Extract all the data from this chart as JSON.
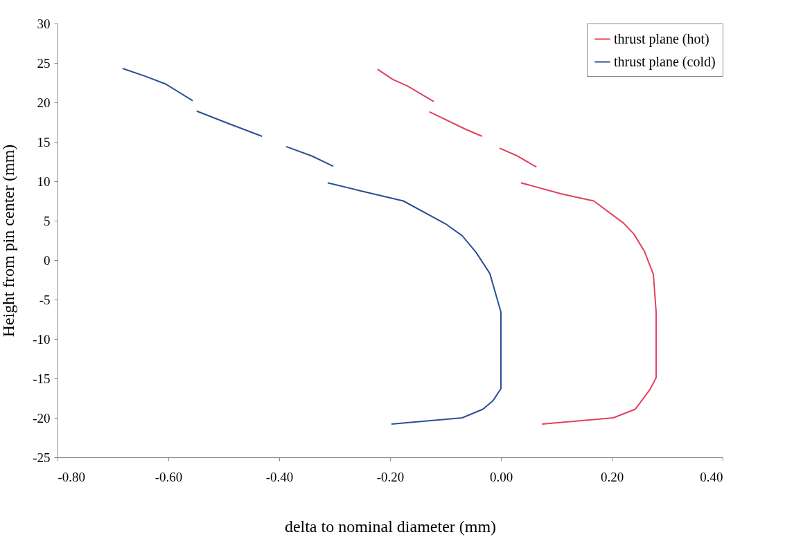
{
  "chart_data": {
    "type": "line",
    "xlabel": "delta to nominal diameter (mm)",
    "ylabel": "Height from pin center (mm)",
    "xlim": [
      -0.8,
      0.4
    ],
    "xticks": [
      {
        "value": -0.8,
        "label": "-0.80"
      },
      {
        "value": -0.6,
        "label": "-0.60"
      },
      {
        "value": -0.4,
        "label": "-0.40"
      },
      {
        "value": -0.2,
        "label": "-0.20"
      },
      {
        "value": 0,
        "label": "0.00"
      },
      {
        "value": 0.2,
        "label": "0.20"
      },
      {
        "value": 0.4,
        "label": "0.40"
      }
    ],
    "ylim": [
      -25,
      30
    ],
    "yticks": [
      -25,
      -20,
      -15,
      -10,
      -5,
      0,
      5,
      10,
      15,
      20,
      25,
      30
    ],
    "grid": false,
    "legend": "top right",
    "marker": "none",
    "line_style": "solid",
    "series": [
      {
        "name": "thrust plane (hot)",
        "color": "#e2405e",
        "x": [
          -0.2225,
          -0.195,
          -0.169,
          -0.121,
          null,
          -0.129,
          -0.064,
          -0.034,
          null,
          -0.0025,
          0.03,
          0.064,
          null,
          0.036,
          0.109,
          0.1675,
          0.221,
          0.24,
          0.259,
          0.275,
          0.28,
          0.28,
          0.269,
          0.2425,
          0.2025,
          0.074
        ],
        "values": [
          24.2,
          22.9,
          22.1,
          20.1,
          null,
          18.8,
          16.6,
          15.7,
          null,
          14.2,
          13.2,
          11.8,
          null,
          9.8,
          8.4,
          7.5,
          4.7,
          3.3,
          1.1,
          -1.8,
          -6.6,
          -14.9,
          -16.4,
          -18.9,
          -20.0,
          -20.8
        ]
      },
      {
        "name": "thrust plane (cold)",
        "color": "#2a4f96",
        "x": [
          -0.6825,
          -0.641,
          -0.604,
          -0.556,
          null,
          -0.549,
          -0.491,
          -0.431,
          null,
          -0.3875,
          -0.341,
          -0.3025,
          null,
          -0.3125,
          -0.254,
          -0.176,
          -0.1,
          -0.07,
          -0.045,
          -0.02,
          0,
          0,
          0,
          -0.014,
          -0.0325,
          -0.07,
          -0.1975
        ],
        "values": [
          24.3,
          23.3,
          22.3,
          20.2,
          null,
          18.9,
          17.3,
          15.7,
          null,
          14.4,
          13.2,
          11.9,
          null,
          9.8,
          8.8,
          7.5,
          4.6,
          3.1,
          1.0,
          -1.7,
          -6.6,
          -14.7,
          -16.3,
          -17.8,
          -18.9,
          -20.0,
          -20.8
        ]
      }
    ]
  }
}
